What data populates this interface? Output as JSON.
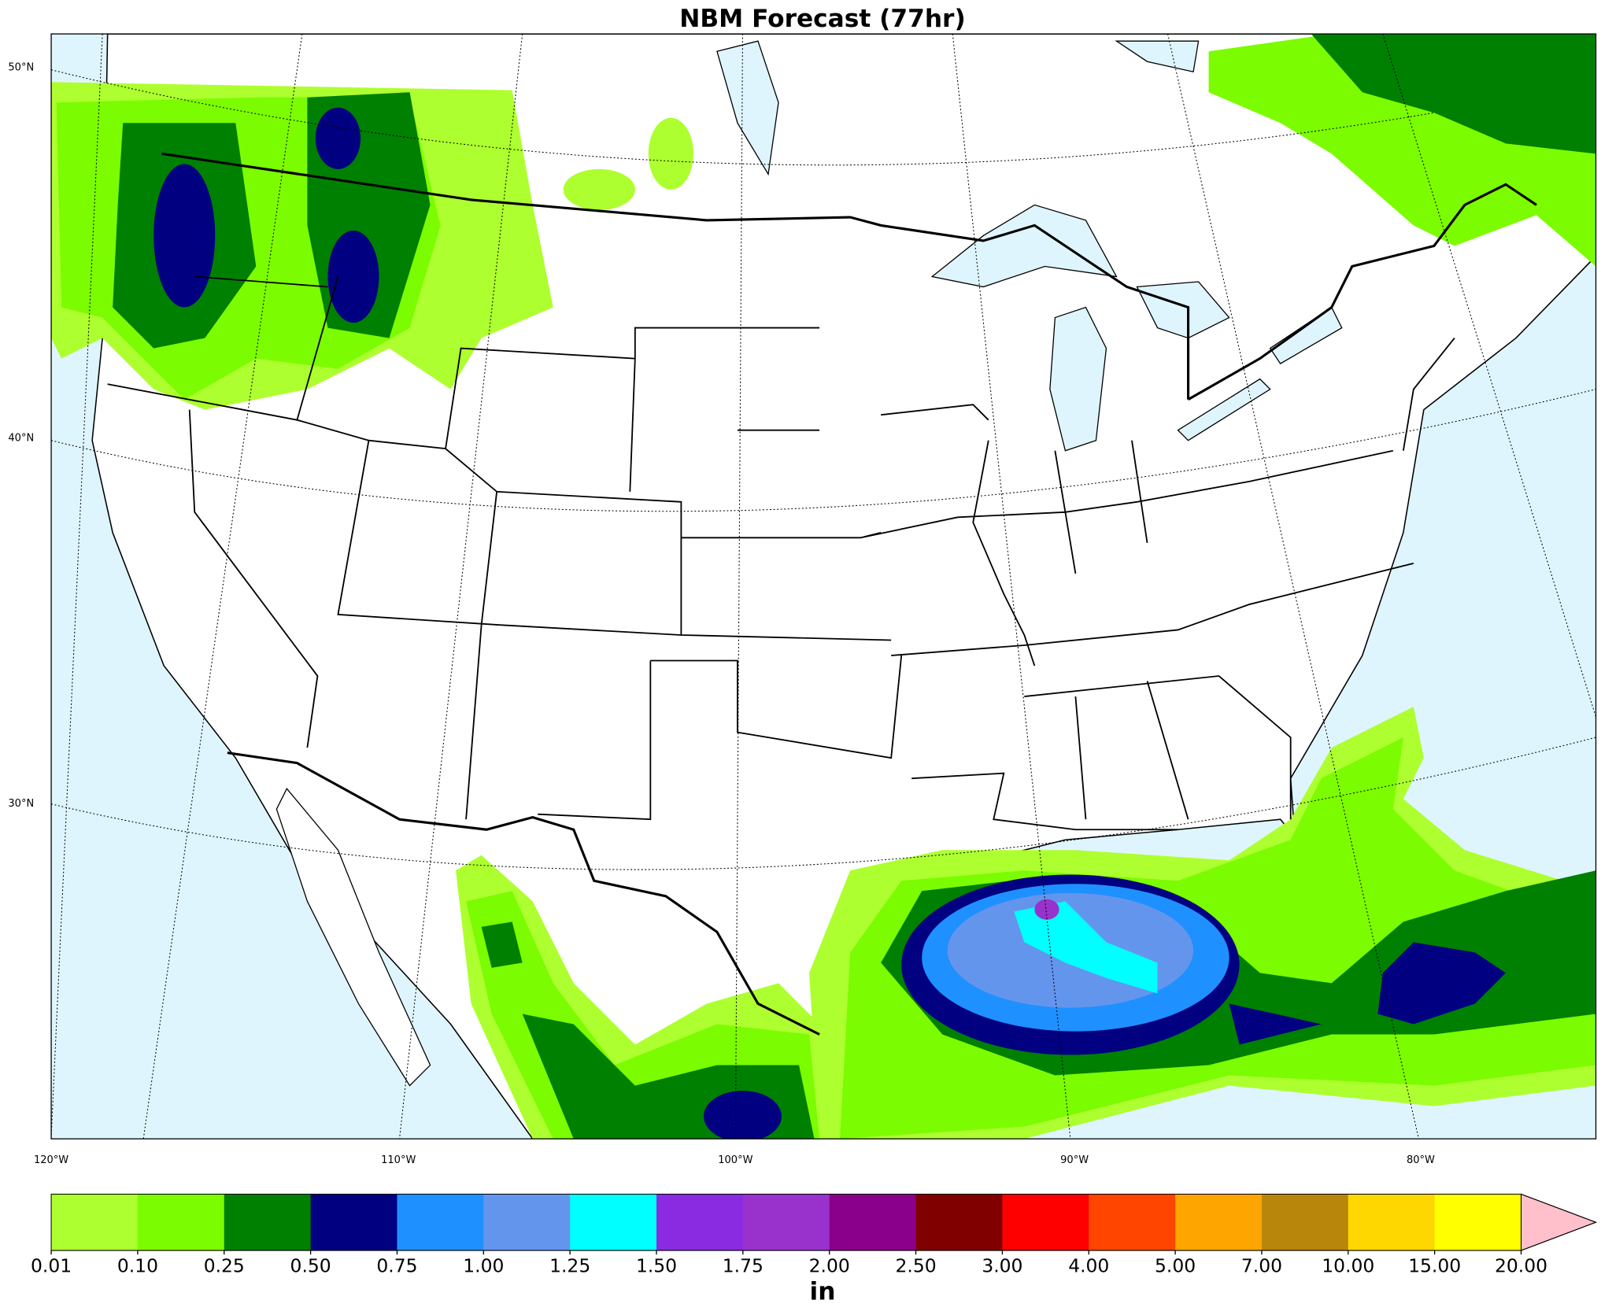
{
  "title": "NBM Forecast (77hr)",
  "map": {
    "lat_labels": [
      {
        "value": 50,
        "label": "50°N"
      },
      {
        "value": 40,
        "label": "40°N"
      },
      {
        "value": 30,
        "label": "30°N"
      }
    ],
    "lon_labels": [
      {
        "value": -120,
        "label": "120°W"
      },
      {
        "value": -110,
        "label": "110°W"
      },
      {
        "value": -100,
        "label": "100°W"
      },
      {
        "value": -90,
        "label": "90°W"
      },
      {
        "value": -80,
        "label": "80°W"
      }
    ]
  },
  "colorbar": {
    "label": "in",
    "levels": [
      0.01,
      {
        "value": 0.1,
        "label": "0.10"
      },
      0.25,
      {
        "value": 0.5,
        "label": "0.50"
      },
      0.75,
      {
        "value": 1,
        "label": "1.00"
      },
      1.25,
      {
        "value": 1.5,
        "label": "1.50"
      },
      1.75,
      {
        "value": 2,
        "label": "2.00"
      },
      {
        "value": 2.5,
        "label": "2.50"
      },
      {
        "value": 3,
        "label": "3.00"
      },
      {
        "value": 4,
        "label": "4.00"
      },
      {
        "value": 5,
        "label": "5.00"
      },
      {
        "value": 7,
        "label": "7.00"
      },
      {
        "value": 10,
        "label": "10.00"
      },
      {
        "value": 15,
        "label": "15.00"
      },
      {
        "value": 20,
        "label": "20.00"
      }
    ],
    "colors": [
      "#adff2f",
      "#7cfc00",
      "#008000",
      "#000080",
      "#1e90ff",
      "#6495ed",
      "#00ffff",
      "#8a2be2",
      "#9932cc",
      "#8b008b",
      "#800000",
      "#ff0000",
      "#ff4500",
      "#ffa500",
      "#b8860b",
      "#ffd700",
      "#ffff00"
    ],
    "extend_color": "#ffc0cb"
  }
}
